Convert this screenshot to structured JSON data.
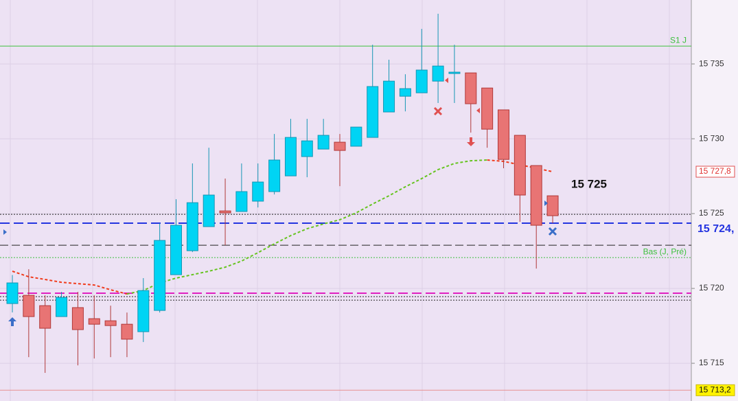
{
  "chart_data": {
    "type": "candlestick",
    "ylim": [
      15712.48,
      15739.27
    ],
    "yticks": [
      {
        "value": 15715,
        "label": "15 715"
      },
      {
        "value": 15720,
        "label": "15 720"
      },
      {
        "value": 15725,
        "label": "15 725"
      },
      {
        "value": 15730,
        "label": "15 730"
      },
      {
        "value": 15735,
        "label": "15 735"
      }
    ],
    "grid": true,
    "up_color": "#00d4f4",
    "down_color": "#e87474",
    "open": [
      15718.99,
      15719.54,
      15718.85,
      15718.12,
      15718.72,
      15717.98,
      15717.84,
      15717.61,
      15717.11,
      15718.53,
      15720.92,
      15722.52,
      15724.13,
      15725.18,
      15725.14,
      15725.83,
      15726.47,
      15727.52,
      15728.81,
      15729.31,
      15729.77,
      15729.5,
      15730.09,
      15731.79,
      15732.84,
      15733.07,
      15733.85,
      15734.36,
      15734.4,
      15733.39,
      15731.93,
      15730.23,
      15728.21,
      15726.19
    ],
    "high": [
      15720.9,
      15721.28,
      15719.54,
      15719.77,
      15719.77,
      15719.54,
      15718.85,
      15718.39,
      15720.69,
      15724.36,
      15725.96,
      15728.35,
      15729.4,
      15727.34,
      15728.35,
      15728.35,
      15730.32,
      15731.33,
      15731.33,
      15731.33,
      15730.32,
      15730.78,
      15736.28,
      15735.28,
      15734.31,
      15737.34,
      15738.35,
      15736.28,
      15734.4,
      15733.39,
      15731.93,
      15730.23,
      15728.21,
      15726.19
    ],
    "low": [
      15718.4,
      15715.41,
      15714.36,
      15718.12,
      15714.86,
      15715.32,
      15715.41,
      15715.41,
      15716.42,
      15718.39,
      15720.92,
      15722.43,
      15724.13,
      15722.89,
      15725.14,
      15725.41,
      15726.28,
      15727.52,
      15727.43,
      15729.31,
      15726.83,
      15729.5,
      15730.09,
      15731.79,
      15731.83,
      15733.07,
      15732.39,
      15732.39,
      15730.41,
      15729.4,
      15728.03,
      15724.45,
      15721.33,
      15724.36
    ],
    "close": [
      15720.37,
      15718.12,
      15717.34,
      15719.4,
      15717.25,
      15717.61,
      15717.52,
      15716.61,
      15719.86,
      15723.21,
      15724.22,
      15725.73,
      15726.24,
      15725.05,
      15726.47,
      15727.11,
      15728.58,
      15730.09,
      15729.86,
      15730.23,
      15729.22,
      15730.78,
      15733.49,
      15733.85,
      15733.35,
      15734.59,
      15734.86,
      15734.45,
      15732.34,
      15730.64,
      15728.62,
      15726.24,
      15724.22,
      15724.86
    ],
    "moving_average": {
      "values": [
        15721.15,
        15720.78,
        15720.6,
        15720.41,
        15720.32,
        15720.23,
        15719.91,
        15719.63,
        15719.86,
        15720.37,
        15720.69,
        15720.92,
        15721.15,
        15721.42,
        15721.83,
        15722.39,
        15722.98,
        15723.53,
        15723.99,
        15724.31,
        15724.59,
        15725.05,
        15725.64,
        15726.19,
        15726.79,
        15727.34,
        15727.94,
        15728.35,
        15728.53,
        15728.58,
        15728.49,
        15728.26,
        15728.03,
        15727.8
      ],
      "up_color": "#66c420",
      "down_color": "#f03a1a",
      "tag": {
        "value": 15727.8,
        "label": "15 727,8",
        "style": "red-box"
      }
    },
    "levels": [
      {
        "value": 15736.19,
        "color": "#3cc03c",
        "style": "solid",
        "label": "S1 J"
      },
      {
        "value": 15724.95,
        "color": "#222222",
        "style": "dotted"
      },
      {
        "value": 15724.36,
        "color": "#2434e0",
        "style": "dashed-thick",
        "tag": {
          "value": 15724,
          "label": "15 724,",
          "style": "blue-bold"
        }
      },
      {
        "value": 15722.89,
        "color": "#222222",
        "style": "dashed"
      },
      {
        "value": 15722.06,
        "color": "#3cc03c",
        "style": "dotted",
        "label": "Bas (J, Pré)"
      },
      {
        "value": 15719.68,
        "color": "#e020c0",
        "style": "dashed-thick"
      },
      {
        "value": 15719.45,
        "color": "#222222",
        "style": "dotted"
      },
      {
        "value": 15719.22,
        "color": "#222222",
        "style": "dotted"
      },
      {
        "value": 15713.2,
        "color": "#e89090",
        "style": "solid",
        "tag": {
          "value": 15713.2,
          "label": "15 713,2",
          "style": "yellow-box"
        }
      }
    ],
    "annotation": "15 725"
  }
}
